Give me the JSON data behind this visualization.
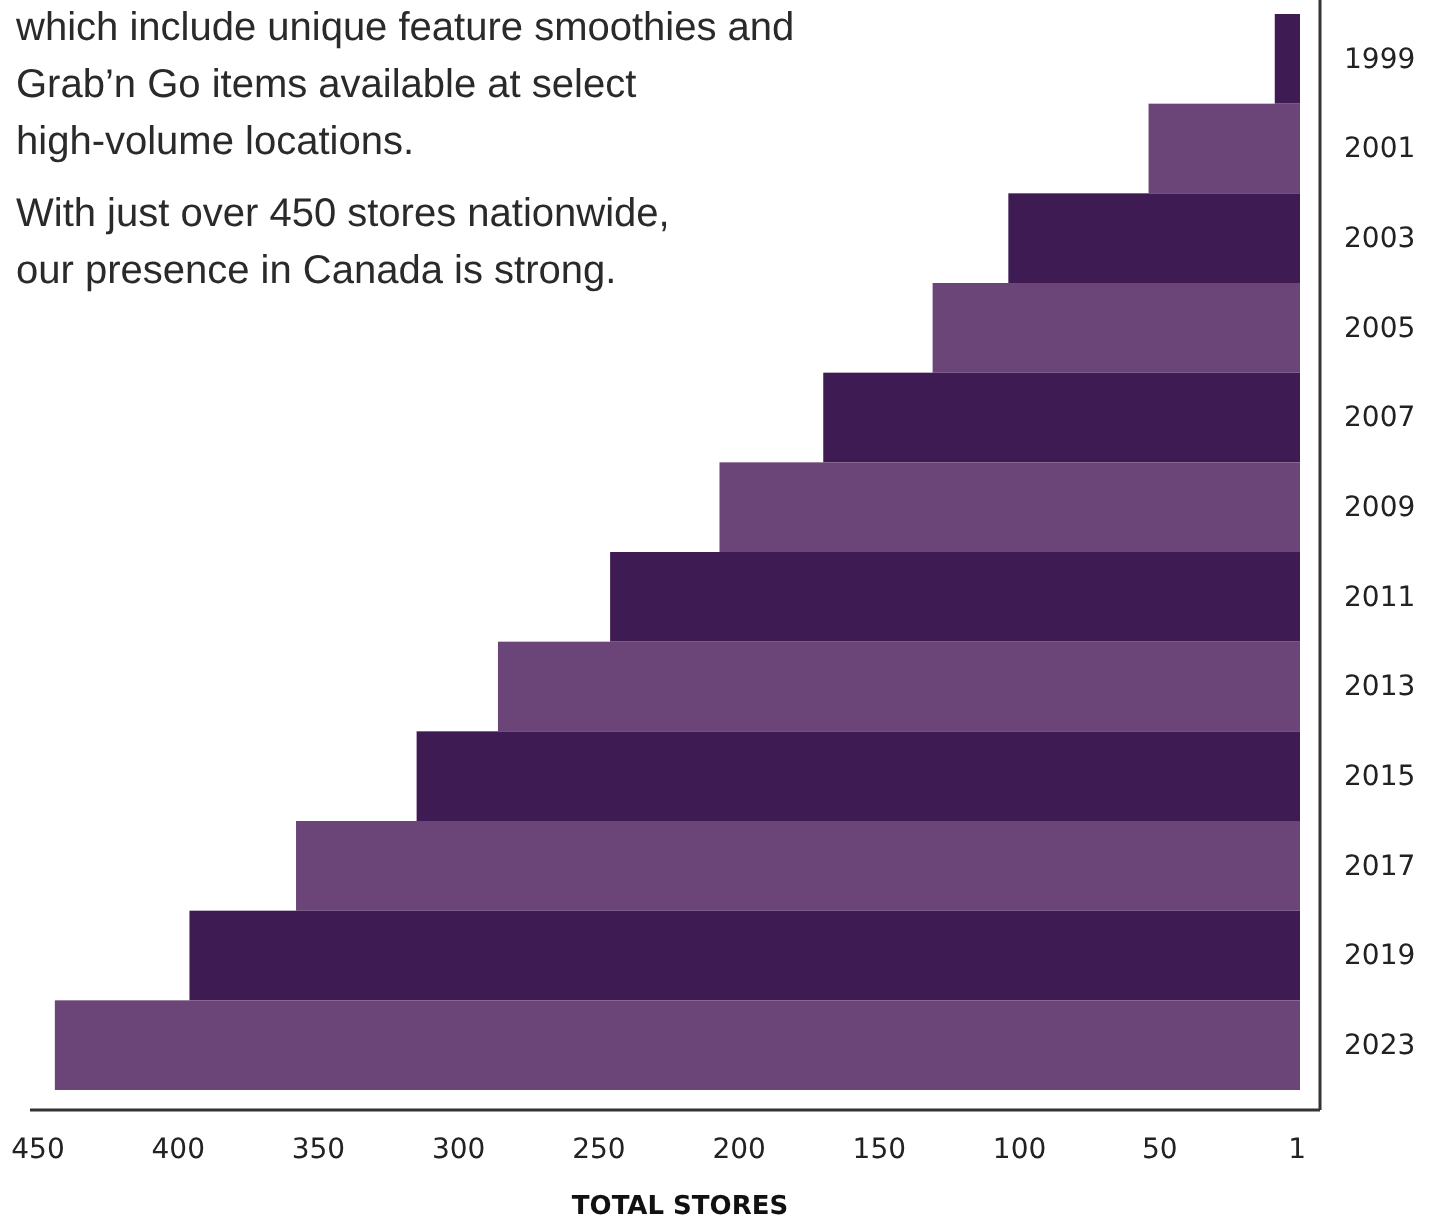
{
  "chart_data": {
    "type": "bar",
    "orientation": "horizontal",
    "xlabel": "TOTAL STORES",
    "categories": [
      "1999",
      "2001",
      "2003",
      "2005",
      "2007",
      "2009",
      "2011",
      "2013",
      "2015",
      "2017",
      "2019",
      "2023"
    ],
    "values": [
      9,
      54,
      104,
      131,
      170,
      207,
      246,
      286,
      315,
      358,
      396,
      444
    ],
    "colors": [
      "#3e1b53",
      "#6b4578",
      "#3e1b53",
      "#6b4578",
      "#3e1b53",
      "#6b4578",
      "#3e1b53",
      "#6b4578",
      "#3e1b53",
      "#6b4578",
      "#3e1b53",
      "#6b4578"
    ],
    "xlim": [
      455,
      0
    ],
    "xticks": [
      450,
      400,
      350,
      300,
      250,
      200,
      150,
      100,
      50,
      1
    ],
    "annotations": [
      "which include unique feature smoothies and Grab’n Go items available at select high-volume locations.",
      "With just over 450 stores nationwide, our presence in Canada is strong."
    ]
  }
}
